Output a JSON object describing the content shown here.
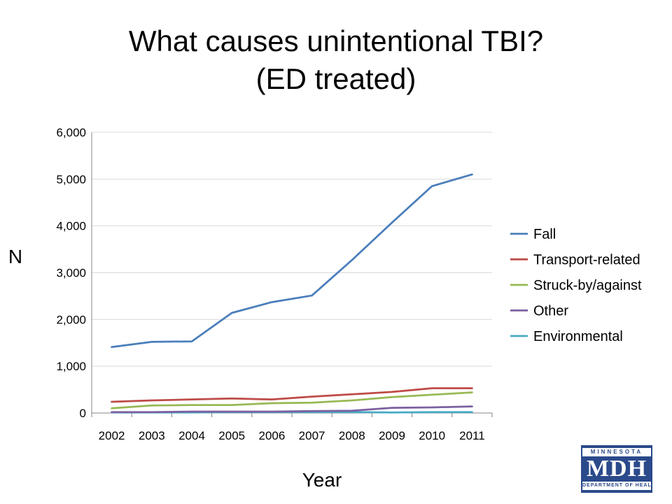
{
  "title_line1": "What causes unintentional TBI?",
  "title_line2": "(ED treated)",
  "chart_data": {
    "type": "line",
    "x": [
      "2002",
      "2003",
      "2004",
      "2005",
      "2006",
      "2007",
      "2008",
      "2009",
      "2010",
      "2011"
    ],
    "ylabel": "N",
    "xlabel": "Year",
    "ylim": [
      0,
      6000
    ],
    "yticks": [
      0,
      1000,
      2000,
      3000,
      4000,
      5000,
      6000
    ],
    "ytick_labels": [
      "0",
      "1,000",
      "2,000",
      "3,000",
      "4,000",
      "5,000",
      "6,000"
    ],
    "grid": true,
    "legend": "right",
    "series": [
      {
        "name": "Fall",
        "color": "#4a7ebb",
        "values": [
          1410,
          1520,
          1530,
          2140,
          2370,
          2510,
          3270,
          4070,
          4850,
          5100
        ]
      },
      {
        "name": "Transport-related",
        "color": "#be4b48",
        "values": [
          240,
          270,
          290,
          310,
          290,
          350,
          400,
          450,
          530,
          530
        ]
      },
      {
        "name": "Struck-by/against",
        "color": "#98b954",
        "values": [
          100,
          160,
          170,
          170,
          210,
          220,
          270,
          340,
          390,
          440
        ]
      },
      {
        "name": "Other",
        "color": "#7d60a0",
        "values": [
          20,
          20,
          30,
          30,
          30,
          40,
          50,
          110,
          120,
          140
        ]
      },
      {
        "name": "Environmental",
        "color": "#46aac5",
        "values": [
          10,
          10,
          10,
          20,
          20,
          20,
          20,
          10,
          20,
          20
        ]
      }
    ]
  },
  "logo": {
    "top": "MINNESOTA",
    "mid": "MDH",
    "bottom": "DEPARTMENT OF HEALTH"
  }
}
